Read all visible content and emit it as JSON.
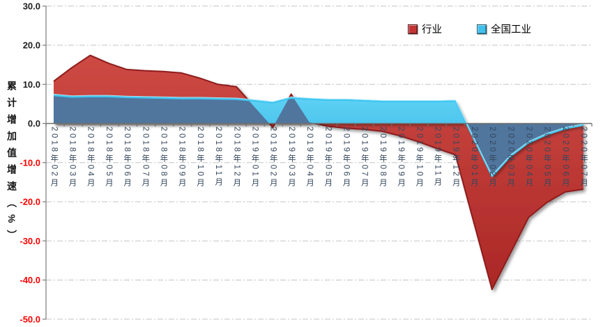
{
  "chart_data": {
    "type": "area",
    "title": "",
    "xlabel": "",
    "ylabel": "累计增加值增速（%）",
    "ylim": [
      -50,
      30
    ],
    "y_tick_step": 10,
    "y_tick_labels": [
      "30.0",
      "20.0",
      "10.0",
      "0.0",
      "-10.0",
      "-20.0",
      "-30.0",
      "-40.0",
      "-50.0"
    ],
    "negative_tick_color": "#ff0000",
    "positive_tick_color": "#1d1d1d",
    "grid": "horizontal dash-dot, light gray, on",
    "legend_position": "top-right",
    "categories": [
      "2018年02月",
      "2018年03月",
      "2018年04月",
      "2018年05月",
      "2018年06月",
      "2018年07月",
      "2018年08月",
      "2018年09月",
      "2018年10月",
      "2018年11月",
      "2018年12月",
      "2019年01月",
      "2019年02月",
      "2019年03月",
      "2019年04月",
      "2019年05月",
      "2019年06月",
      "2019年07月",
      "2019年08月",
      "2019年09月",
      "2019年10月",
      "2019年11月",
      "2019年12月",
      "2020年01月",
      "2020年02月",
      "2020年03月",
      "2020年04月",
      "2020年05月",
      "2020年06月",
      "2020年07月"
    ],
    "series": [
      {
        "name": "行业",
        "fill_color": "#c23537",
        "line_color": "#8e1b1e",
        "values": [
          10.8,
          14.3,
          17.4,
          15.4,
          13.8,
          13.5,
          13.3,
          12.9,
          11.6,
          10.0,
          9.4,
          4.2,
          -1.0,
          7.5,
          0.3,
          -0.7,
          -1.2,
          -1.5,
          -2.0,
          -3.2,
          -4.7,
          -6.4,
          -8.0,
          -25.2,
          -42.4,
          -33.2,
          -24.0,
          -20.2,
          -17.5,
          -16.8
        ]
      },
      {
        "name": "全国工业",
        "fill_color": "#41c0ec",
        "line_color": "#3fc6f0",
        "values": [
          7.2,
          6.8,
          6.9,
          6.9,
          6.7,
          6.6,
          6.5,
          6.4,
          6.4,
          6.3,
          6.2,
          5.8,
          5.3,
          6.5,
          6.2,
          6.0,
          6.0,
          5.8,
          5.6,
          5.6,
          5.6,
          5.6,
          5.7,
          -3.9,
          -13.5,
          -8.4,
          -4.9,
          -2.8,
          -1.3,
          -0.4
        ]
      }
    ],
    "overlap_color": "#50769e",
    "axis_color": "#7a7a7a"
  }
}
